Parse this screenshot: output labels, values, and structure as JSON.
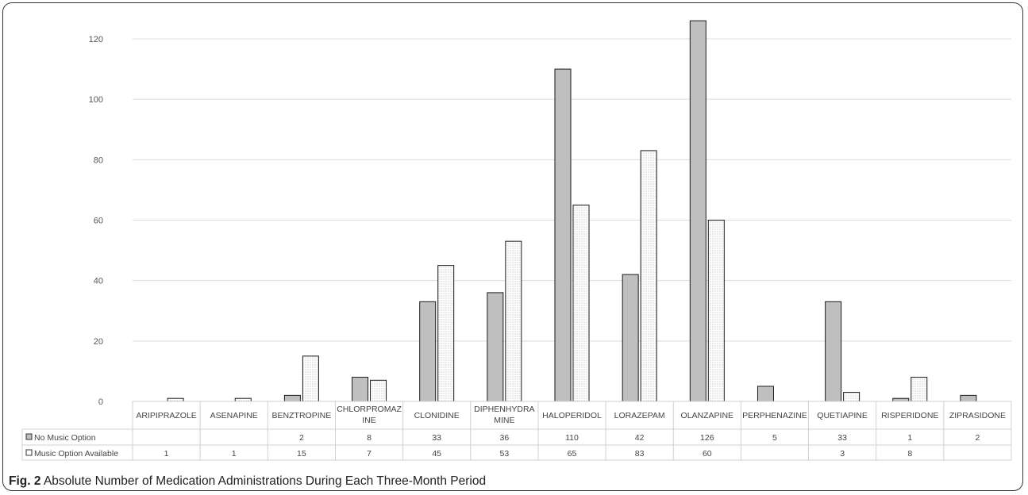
{
  "figure": {
    "caption_label": "Fig. 2",
    "caption_text": "Absolute Number of Medication Administrations During Each Three-Month Period"
  },
  "chart_data": {
    "type": "bar",
    "categories": [
      "ARIPIPRAZOLE",
      "ASENAPINE",
      "BENZTROPINE",
      "CHLORPROMAZINE",
      "CLONIDINE",
      "DIPHENHYDRAMINE",
      "HALOPERIDOL",
      "LORAZEPAM",
      "OLANZAPINE",
      "PERPHENAZINE",
      "QUETIAPINE",
      "RISPERIDONE",
      "ZIPRASIDONE"
    ],
    "category_label_lines": [
      [
        "ARIPIPRAZOLE"
      ],
      [
        "ASENAPINE"
      ],
      [
        "BENZTROPINE"
      ],
      [
        "CHLORPROMAZ",
        "INE"
      ],
      [
        "CLONIDINE"
      ],
      [
        "DIPHENHYDRA",
        "MINE"
      ],
      [
        "HALOPERIDOL"
      ],
      [
        "LORAZEPAM"
      ],
      [
        "OLANZAPINE"
      ],
      [
        "PERPHENAZINE"
      ],
      [
        "QUETIAPINE"
      ],
      [
        "RISPERIDONE"
      ],
      [
        "ZIPRASIDONE"
      ]
    ],
    "series": [
      {
        "name": "No Music Option",
        "color": "#bfbfbf",
        "pattern": "solid",
        "values": [
          null,
          null,
          2,
          8,
          33,
          36,
          110,
          42,
          126,
          5,
          33,
          1,
          2
        ]
      },
      {
        "name": "Music Option Available",
        "color": "#ffffff",
        "pattern": "dotted",
        "values": [
          1,
          1,
          15,
          7,
          45,
          53,
          65,
          83,
          60,
          null,
          3,
          8,
          null
        ]
      }
    ],
    "ylim": [
      0,
      120
    ],
    "yticks": [
      0,
      20,
      40,
      60,
      80,
      100,
      120
    ],
    "grid": true,
    "legend": "data-table-left",
    "data_table": true
  }
}
